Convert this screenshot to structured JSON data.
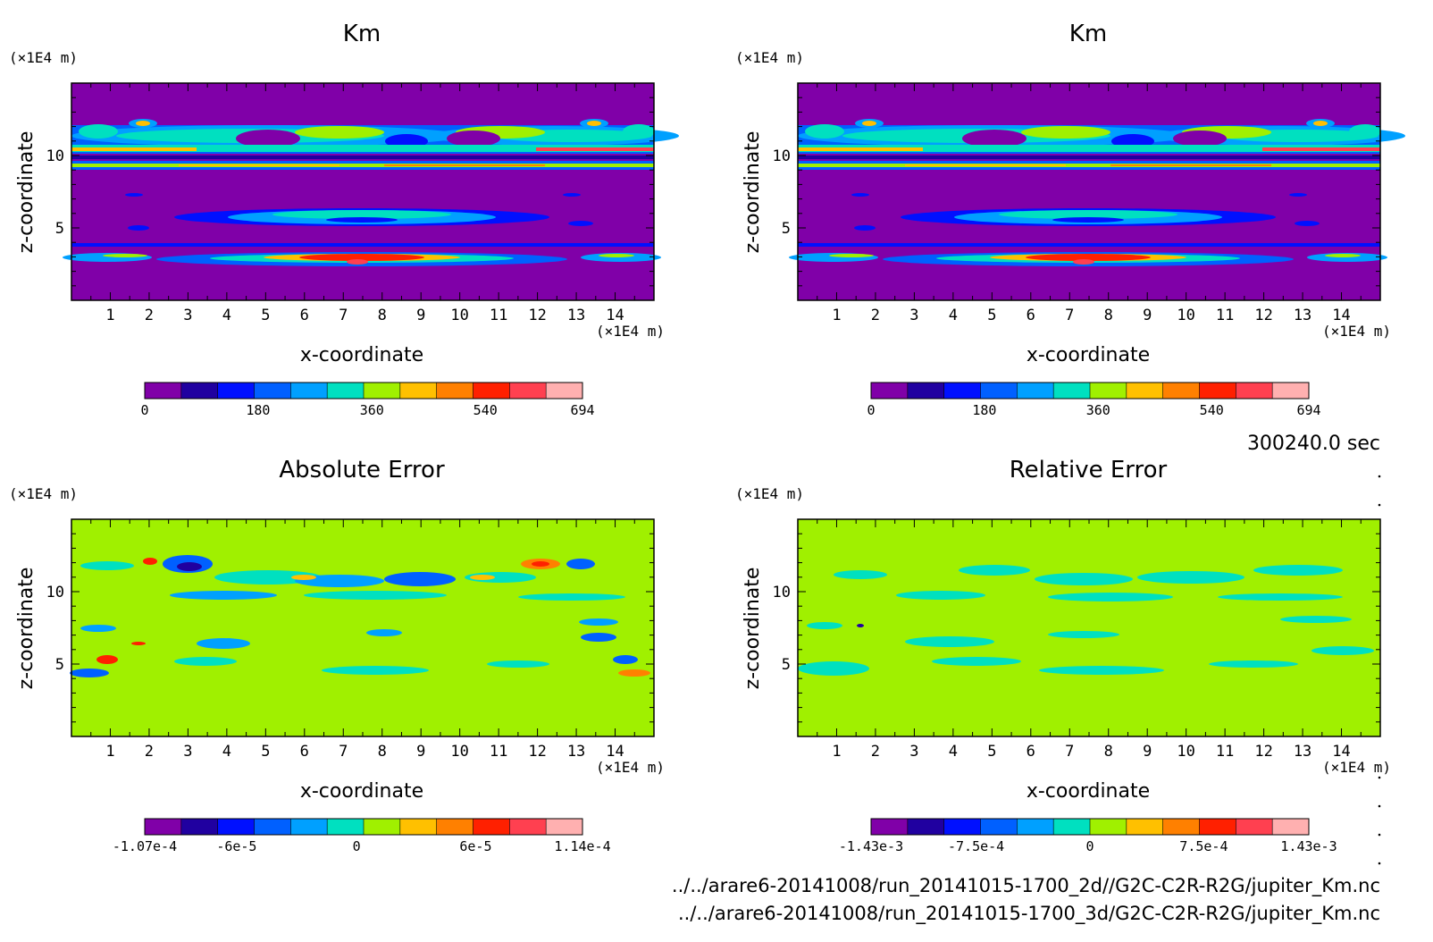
{
  "figure": {
    "time_label": "300240.0 sec",
    "file_lines": [
      "../../arare6-20141008/run_20141015-1700_2d//G2C-C2R-R2G/jupiter_Km.nc",
      "../../arare6-20141008/run_20141015-1700_3d/G2C-C2R-R2G/jupiter_Km.nc"
    ]
  },
  "colors": {
    "km": [
      "#8000a8",
      "#2000a0",
      "#0010ff",
      "#0060ff",
      "#00a0ff",
      "#00e0c0",
      "#a0f000",
      "#ffc000",
      "#ff8000",
      "#ff2000",
      "#ff4050",
      "#ffb0b0"
    ],
    "err": [
      "#8000a8",
      "#2000a0",
      "#0010ff",
      "#0060ff",
      "#00a0ff",
      "#00e0c0",
      "#a0f000",
      "#ffc000",
      "#ff8000",
      "#ff2000",
      "#ff4050",
      "#ffb0b0"
    ],
    "bg_km": "#8000a8",
    "bg_err": "#a0f000"
  },
  "chart_data": [
    {
      "type": "heatmap",
      "title": "Km",
      "xlabel": "x-coordinate",
      "ylabel": "z-coordinate",
      "x_unit": "(×1E4 m)",
      "y_unit": "(×1E4 m)",
      "x_ticks": [
        "1",
        "2",
        "3",
        "4",
        "5",
        "6",
        "7",
        "8",
        "9",
        "10",
        "11",
        "12",
        "13",
        "14"
      ],
      "y_ticks": [
        "5",
        "10"
      ],
      "xlim": [
        0,
        15
      ],
      "ylim": [
        0,
        15
      ],
      "colorbar": {
        "labels": [
          "0",
          "180",
          "360",
          "540",
          "694"
        ],
        "label_positions": [
          0,
          0.259,
          0.519,
          0.778,
          1.0
        ]
      }
    },
    {
      "type": "heatmap",
      "title": "Km",
      "xlabel": "x-coordinate",
      "ylabel": "z-coordinate",
      "x_unit": "(×1E4 m)",
      "y_unit": "(×1E4 m)",
      "x_ticks": [
        "1",
        "2",
        "3",
        "4",
        "5",
        "6",
        "7",
        "8",
        "9",
        "10",
        "11",
        "12",
        "13",
        "14"
      ],
      "y_ticks": [
        "5",
        "10"
      ],
      "xlim": [
        0,
        15
      ],
      "ylim": [
        0,
        15
      ],
      "colorbar": {
        "labels": [
          "0",
          "180",
          "360",
          "540",
          "694"
        ],
        "label_positions": [
          0,
          0.259,
          0.519,
          0.778,
          1.0
        ]
      }
    },
    {
      "type": "heatmap",
      "title": "Absolute Error",
      "xlabel": "x-coordinate",
      "ylabel": "z-coordinate",
      "x_unit": "(×1E4 m)",
      "y_unit": "(×1E4 m)",
      "x_ticks": [
        "1",
        "2",
        "3",
        "4",
        "5",
        "6",
        "7",
        "8",
        "9",
        "10",
        "11",
        "12",
        "13",
        "14"
      ],
      "y_ticks": [
        "5",
        "10"
      ],
      "xlim": [
        0,
        15
      ],
      "ylim": [
        0,
        15
      ],
      "colorbar": {
        "labels": [
          "-1.07e-4",
          "-6e-5",
          "0",
          "6e-5",
          "1.14e-4"
        ],
        "label_positions": [
          0,
          0.21,
          0.484,
          0.756,
          1.0
        ]
      }
    },
    {
      "type": "heatmap",
      "title": "Relative Error",
      "xlabel": "x-coordinate",
      "ylabel": "z-coordinate",
      "x_unit": "(×1E4 m)",
      "y_unit": "(×1E4 m)",
      "x_ticks": [
        "1",
        "2",
        "3",
        "4",
        "5",
        "6",
        "7",
        "8",
        "9",
        "10",
        "11",
        "12",
        "13",
        "14"
      ],
      "y_ticks": [
        "5",
        "10"
      ],
      "xlim": [
        0,
        15
      ],
      "ylim": [
        0,
        15
      ],
      "colorbar": {
        "labels": [
          "-1.43e-3",
          "-7.5e-4",
          "0",
          "7.5e-4",
          "1.43e-3"
        ],
        "label_positions": [
          0,
          0.24,
          0.5,
          0.76,
          1.0
        ]
      }
    }
  ]
}
